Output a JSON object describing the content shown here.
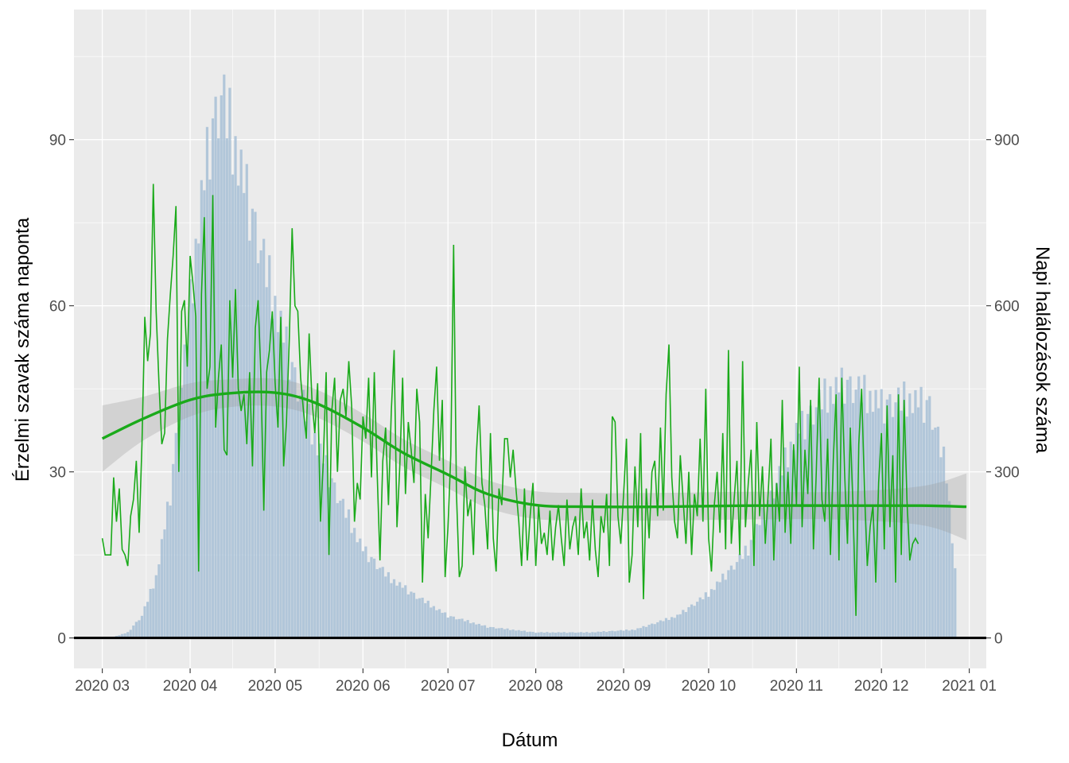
{
  "chart_data": {
    "type": "bar",
    "xlabel": "Dátum",
    "ylabel": "Érzelmi szavak száma naponta",
    "ylabel_right": "Napi halálozások száma",
    "x_range": [
      "2020-02-20",
      "2021-01-07"
    ],
    "x_ticks": [
      {
        "date": "2020-03-01",
        "label": "2020 03"
      },
      {
        "date": "2020-04-01",
        "label": "2020 04"
      },
      {
        "date": "2020-05-01",
        "label": "2020 05"
      },
      {
        "date": "2020-06-01",
        "label": "2020 06"
      },
      {
        "date": "2020-07-01",
        "label": "2020 07"
      },
      {
        "date": "2020-08-01",
        "label": "2020 08"
      },
      {
        "date": "2020-09-01",
        "label": "2020 09"
      },
      {
        "date": "2020-10-01",
        "label": "2020 10"
      },
      {
        "date": "2020-11-01",
        "label": "2020 11"
      },
      {
        "date": "2020-12-01",
        "label": "2020 12"
      },
      {
        "date": "2021-01-01",
        "label": "2021 01"
      }
    ],
    "ylim_left": [
      -5.5,
      113.5
    ],
    "y_ticks_left": [
      0,
      30,
      60,
      90
    ],
    "ylim_right": [
      -55,
      1135
    ],
    "y_ticks_right": [
      0,
      300,
      600,
      900
    ],
    "grid": true,
    "series": [
      {
        "name": "Napi halálozások száma",
        "kind": "bar",
        "axis": "right",
        "color": "#a7bfd6",
        "start_date": "2020-03-01",
        "step_days": 1,
        "anchors": [
          [
            "2020-03-01",
            0
          ],
          [
            "2020-03-05",
            2
          ],
          [
            "2020-03-10",
            10
          ],
          [
            "2020-03-15",
            40
          ],
          [
            "2020-03-20",
            110
          ],
          [
            "2020-03-25",
            260
          ],
          [
            "2020-03-30",
            500
          ],
          [
            "2020-04-04",
            750
          ],
          [
            "2020-04-08",
            900
          ],
          [
            "2020-04-12",
            980
          ],
          [
            "2020-04-16",
            900
          ],
          [
            "2020-04-20",
            820
          ],
          [
            "2020-04-25",
            720
          ],
          [
            "2020-05-01",
            600
          ],
          [
            "2020-05-08",
            470
          ],
          [
            "2020-05-15",
            360
          ],
          [
            "2020-05-22",
            270
          ],
          [
            "2020-06-01",
            160
          ],
          [
            "2020-06-10",
            110
          ],
          [
            "2020-06-20",
            75
          ],
          [
            "2020-07-01",
            40
          ],
          [
            "2020-07-15",
            20
          ],
          [
            "2020-08-01",
            10
          ],
          [
            "2020-08-20",
            10
          ],
          [
            "2020-09-05",
            15
          ],
          [
            "2020-09-20",
            40
          ],
          [
            "2020-10-01",
            80
          ],
          [
            "2020-10-15",
            160
          ],
          [
            "2020-10-25",
            280
          ],
          [
            "2020-11-01",
            370
          ],
          [
            "2020-11-10",
            430
          ],
          [
            "2020-11-18",
            460
          ],
          [
            "2020-11-25",
            440
          ],
          [
            "2020-12-01",
            420
          ],
          [
            "2020-12-10",
            430
          ],
          [
            "2020-12-18",
            420
          ],
          [
            "2020-12-24",
            300
          ],
          [
            "2020-12-27",
            120
          ]
        ]
      },
      {
        "name": "Érzelmi szavak száma naponta",
        "kind": "line",
        "axis": "left",
        "color": "#1aaa1a",
        "start_date": "2020-03-01",
        "step_days": 1,
        "values": [
          18,
          15,
          15,
          15,
          29,
          21,
          27,
          16,
          15,
          13,
          22,
          25,
          32,
          19,
          35,
          58,
          50,
          55,
          82,
          59,
          46,
          35,
          37,
          54,
          62,
          69,
          78,
          30,
          59,
          61,
          49,
          69,
          64,
          58,
          12,
          62,
          76,
          45,
          49,
          80,
          38,
          47,
          53,
          34,
          33,
          61,
          47,
          63,
          45,
          41,
          44,
          35,
          48,
          31,
          56,
          61,
          47,
          23,
          48,
          52,
          59,
          46,
          38,
          58,
          31,
          39,
          54,
          74,
          60,
          59,
          47,
          41,
          36,
          55,
          43,
          37,
          46,
          21,
          32,
          48,
          15,
          41,
          47,
          30,
          43,
          45,
          40,
          50,
          42,
          21,
          28,
          25,
          40,
          36,
          47,
          29,
          48,
          30,
          14,
          32,
          38,
          24,
          41,
          52,
          20,
          31,
          47,
          26,
          39,
          34,
          28,
          45,
          39,
          10,
          26,
          18,
          29,
          41,
          49,
          32,
          43,
          11,
          20,
          33,
          71,
          26,
          11,
          13,
          31,
          22,
          25,
          15,
          33,
          42,
          28,
          24,
          16,
          37,
          18,
          12,
          27,
          24,
          36,
          36,
          29,
          34,
          27,
          21,
          13,
          27,
          14,
          22,
          28,
          13,
          24,
          17,
          19,
          15,
          23,
          14,
          20,
          24,
          18,
          13,
          25,
          16,
          20,
          22,
          15,
          27,
          18,
          21,
          14,
          25,
          16,
          11,
          22,
          19,
          26,
          13,
          40,
          39,
          22,
          17,
          26,
          36,
          10,
          15,
          31,
          20,
          37,
          7,
          27,
          18,
          30,
          32,
          22,
          38,
          23,
          44,
          53,
          29,
          21,
          18,
          33,
          25,
          17,
          30,
          15,
          26,
          22,
          36,
          21,
          45,
          18,
          12,
          24,
          30,
          19,
          37,
          16,
          52,
          17,
          25,
          32,
          15,
          50,
          20,
          28,
          34,
          13,
          39,
          22,
          31,
          17,
          26,
          36,
          14,
          28,
          21,
          43,
          19,
          30,
          17,
          35,
          24,
          49,
          20,
          34,
          26,
          43,
          16,
          30,
          47,
          25,
          21,
          36,
          15,
          32,
          44,
          14,
          47,
          30,
          17,
          38,
          23,
          4,
          35,
          45,
          27,
          13,
          20,
          24,
          10,
          28,
          37,
          16,
          42,
          20,
          33,
          10,
          44,
          15,
          43,
          25,
          14,
          17,
          18,
          17
        ]
      },
      {
        "name": "smooth",
        "kind": "smooth",
        "axis": "left",
        "color": "#1aaa1a",
        "points": [
          [
            "2020-03-01",
            36
          ],
          [
            "2020-03-15",
            39.5
          ],
          [
            "2020-04-01",
            43
          ],
          [
            "2020-04-15",
            44.2
          ],
          [
            "2020-05-01",
            44.3
          ],
          [
            "2020-05-15",
            42.5
          ],
          [
            "2020-06-01",
            38
          ],
          [
            "2020-06-15",
            33.5
          ],
          [
            "2020-07-01",
            29.5
          ],
          [
            "2020-07-15",
            26
          ],
          [
            "2020-08-01",
            24
          ],
          [
            "2020-08-20",
            23.7
          ],
          [
            "2020-09-15",
            23.7
          ],
          [
            "2020-10-15",
            23.9
          ],
          [
            "2020-11-15",
            23.9
          ],
          [
            "2020-12-15",
            23.9
          ],
          [
            "2020-12-31",
            23.7
          ]
        ],
        "band_halfwidth": [
          6,
          4,
          3,
          2.5,
          2.5,
          2.5,
          2.5,
          2.5,
          2.5,
          2.5,
          2.5,
          2.5,
          2.5,
          2.5,
          2.5,
          3.5,
          6
        ]
      }
    ],
    "reference_line": {
      "axis": "left",
      "y": 0,
      "color": "#000000"
    }
  }
}
